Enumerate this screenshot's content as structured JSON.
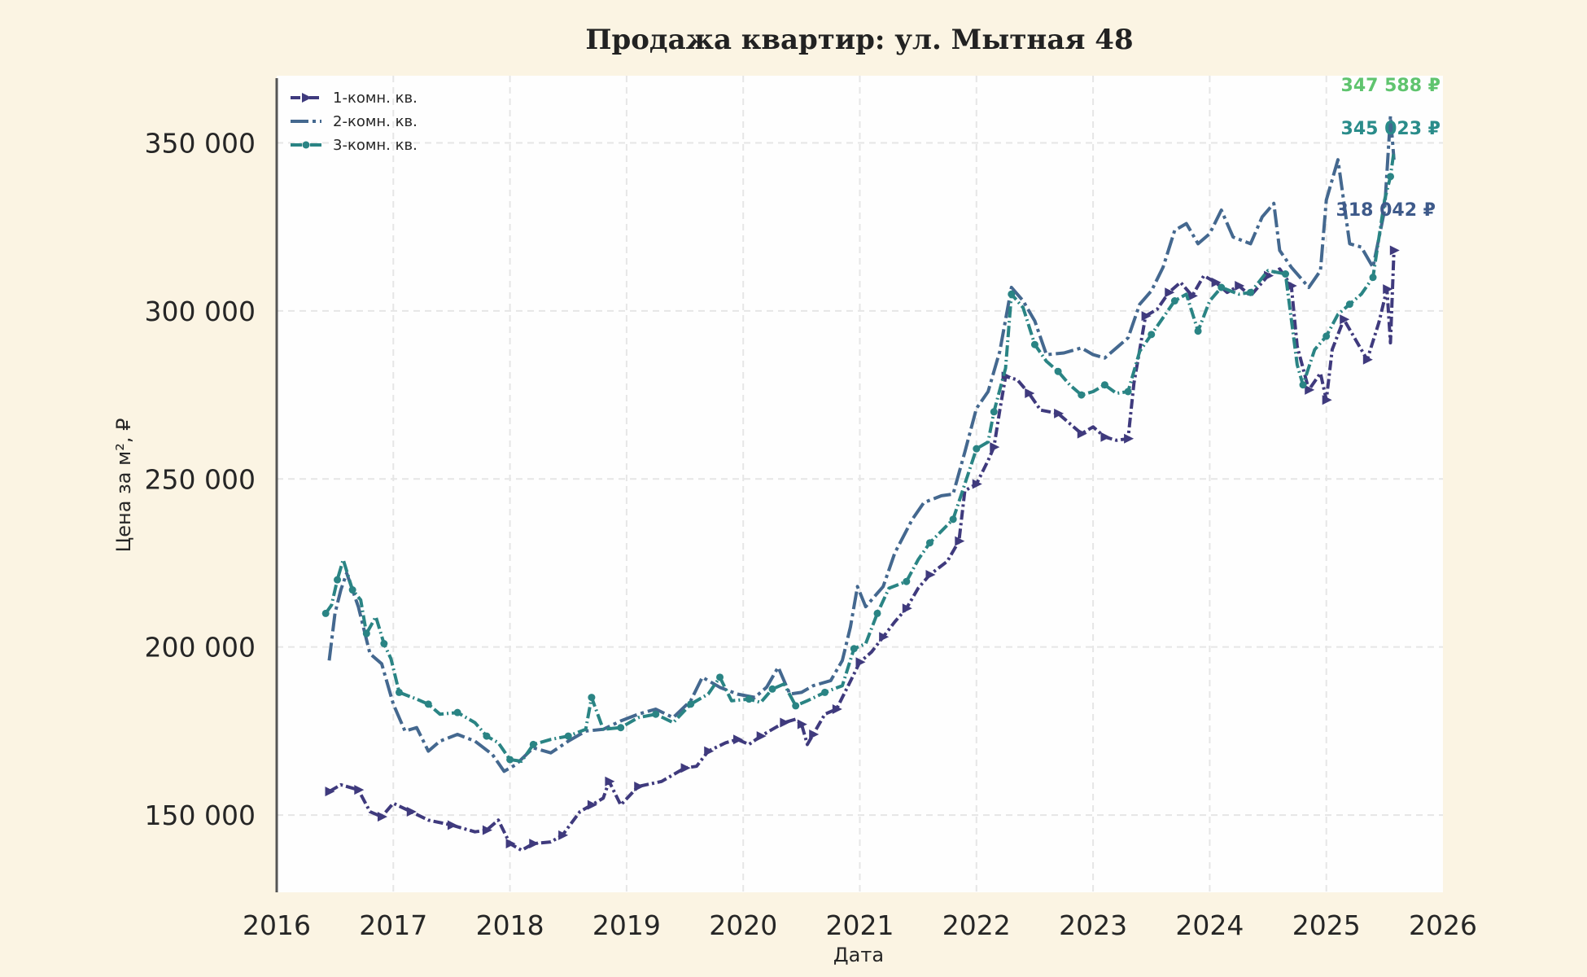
{
  "chart_data": {
    "type": "line",
    "title": "Продажа квартир: ул. Мытная 48",
    "xlabel": "Дата",
    "ylabel": "Цена за м², ₽",
    "xlim": [
      2016.0,
      2026.0
    ],
    "ylim": [
      127000,
      370000
    ],
    "x_ticks": [
      "2016",
      "2017",
      "2018",
      "2019",
      "2020",
      "2021",
      "2022",
      "2023",
      "2024",
      "2025",
      "2026"
    ],
    "y_ticks": [
      "150 000",
      "200 000",
      "250 000",
      "300 000",
      "350 000"
    ],
    "y_tick_values": [
      150000,
      200000,
      250000,
      300000,
      350000
    ],
    "grid": true,
    "legend_position": "top-left",
    "series": [
      {
        "name": "1-комн. кв.",
        "color": "#3f3a7d",
        "dash": "12 4 3 4",
        "marker": "triangle-right",
        "end_label": "318 042 ₽",
        "points": [
          [
            2016.45,
            157000
          ],
          [
            2016.55,
            159000
          ],
          [
            2016.7,
            157500
          ],
          [
            2016.8,
            151000
          ],
          [
            2016.9,
            149500
          ],
          [
            2017.0,
            153500
          ],
          [
            2017.15,
            151000
          ],
          [
            2017.3,
            148500
          ],
          [
            2017.5,
            147000
          ],
          [
            2017.7,
            145000
          ],
          [
            2017.8,
            145500
          ],
          [
            2017.9,
            148500
          ],
          [
            2018.0,
            141500
          ],
          [
            2018.1,
            139500
          ],
          [
            2018.2,
            141500
          ],
          [
            2018.35,
            142000
          ],
          [
            2018.45,
            144000
          ],
          [
            2018.6,
            151000
          ],
          [
            2018.7,
            153000
          ],
          [
            2018.8,
            155000
          ],
          [
            2018.85,
            160000
          ],
          [
            2018.95,
            153000
          ],
          [
            2019.1,
            158500
          ],
          [
            2019.3,
            160000
          ],
          [
            2019.5,
            164000
          ],
          [
            2019.6,
            164500
          ],
          [
            2019.7,
            169000
          ],
          [
            2019.85,
            171500
          ],
          [
            2019.95,
            172500
          ],
          [
            2020.05,
            171000
          ],
          [
            2020.15,
            173500
          ],
          [
            2020.25,
            175500
          ],
          [
            2020.35,
            177500
          ],
          [
            2020.45,
            178500
          ],
          [
            2020.5,
            177000
          ],
          [
            2020.55,
            171000
          ],
          [
            2020.6,
            174000
          ],
          [
            2020.7,
            180000
          ],
          [
            2020.8,
            181500
          ],
          [
            2020.9,
            188500
          ],
          [
            2021.0,
            195500
          ],
          [
            2021.1,
            198500
          ],
          [
            2021.2,
            203000
          ],
          [
            2021.3,
            207500
          ],
          [
            2021.4,
            211500
          ],
          [
            2021.5,
            217500
          ],
          [
            2021.6,
            221500
          ],
          [
            2021.75,
            225500
          ],
          [
            2021.85,
            231500
          ],
          [
            2021.9,
            246500
          ],
          [
            2022.0,
            248500
          ],
          [
            2022.1,
            255500
          ],
          [
            2022.15,
            259500
          ],
          [
            2022.2,
            270500
          ],
          [
            2022.25,
            280500
          ],
          [
            2022.35,
            279500
          ],
          [
            2022.45,
            275500
          ],
          [
            2022.55,
            270500
          ],
          [
            2022.7,
            269500
          ],
          [
            2022.8,
            266500
          ],
          [
            2022.9,
            263500
          ],
          [
            2023.0,
            265500
          ],
          [
            2023.1,
            262500
          ],
          [
            2023.2,
            261500
          ],
          [
            2023.3,
            262000
          ],
          [
            2023.35,
            278500
          ],
          [
            2023.45,
            298500
          ],
          [
            2023.55,
            300500
          ],
          [
            2023.65,
            305500
          ],
          [
            2023.75,
            308500
          ],
          [
            2023.85,
            304500
          ],
          [
            2023.95,
            310500
          ],
          [
            2024.05,
            308500
          ],
          [
            2024.15,
            305500
          ],
          [
            2024.25,
            307500
          ],
          [
            2024.35,
            304500
          ],
          [
            2024.5,
            310500
          ],
          [
            2024.6,
            312500
          ],
          [
            2024.7,
            307500
          ],
          [
            2024.75,
            289500
          ],
          [
            2024.85,
            276500
          ],
          [
            2024.95,
            281500
          ],
          [
            2025.0,
            273500
          ],
          [
            2025.05,
            288500
          ],
          [
            2025.15,
            297500
          ],
          [
            2025.25,
            291500
          ],
          [
            2025.35,
            285500
          ],
          [
            2025.45,
            296500
          ],
          [
            2025.52,
            306500
          ],
          [
            2025.55,
            290500
          ],
          [
            2025.58,
            318042
          ]
        ]
      },
      {
        "name": "2-комн. кв.",
        "color": "#44688f",
        "dash": "22 5 4 5",
        "marker": "none",
        "end_label": "345 023 ₽",
        "points": [
          [
            2016.45,
            196000
          ],
          [
            2016.5,
            210000
          ],
          [
            2016.55,
            217000
          ],
          [
            2016.6,
            222000
          ],
          [
            2016.7,
            212000
          ],
          [
            2016.8,
            198000
          ],
          [
            2016.9,
            195000
          ],
          [
            2017.0,
            183000
          ],
          [
            2017.1,
            175000
          ],
          [
            2017.2,
            176000
          ],
          [
            2017.3,
            169000
          ],
          [
            2017.4,
            172000
          ],
          [
            2017.55,
            174000
          ],
          [
            2017.7,
            172000
          ],
          [
            2017.85,
            168000
          ],
          [
            2017.95,
            163000
          ],
          [
            2018.05,
            165000
          ],
          [
            2018.2,
            170000
          ],
          [
            2018.35,
            168500
          ],
          [
            2018.5,
            172000
          ],
          [
            2018.65,
            175000
          ],
          [
            2018.8,
            175500
          ],
          [
            2018.95,
            178000
          ],
          [
            2019.1,
            180000
          ],
          [
            2019.25,
            181500
          ],
          [
            2019.4,
            179000
          ],
          [
            2019.55,
            184000
          ],
          [
            2019.65,
            191000
          ],
          [
            2019.8,
            188000
          ],
          [
            2019.95,
            186000
          ],
          [
            2020.1,
            185000
          ],
          [
            2020.2,
            188000
          ],
          [
            2020.3,
            194000
          ],
          [
            2020.4,
            186000
          ],
          [
            2020.5,
            186500
          ],
          [
            2020.6,
            188500
          ],
          [
            2020.75,
            190000
          ],
          [
            2020.85,
            196000
          ],
          [
            2020.92,
            206000
          ],
          [
            2020.98,
            218000
          ],
          [
            2021.05,
            212000
          ],
          [
            2021.2,
            218000
          ],
          [
            2021.3,
            228000
          ],
          [
            2021.45,
            238000
          ],
          [
            2021.55,
            243000
          ],
          [
            2021.7,
            245000
          ],
          [
            2021.8,
            245500
          ],
          [
            2021.9,
            258000
          ],
          [
            2022.0,
            271000
          ],
          [
            2022.1,
            276000
          ],
          [
            2022.2,
            288000
          ],
          [
            2022.3,
            307000
          ],
          [
            2022.4,
            303000
          ],
          [
            2022.5,
            297000
          ],
          [
            2022.6,
            287000
          ],
          [
            2022.75,
            287500
          ],
          [
            2022.9,
            289000
          ],
          [
            2023.0,
            287000
          ],
          [
            2023.1,
            286000
          ],
          [
            2023.2,
            289000
          ],
          [
            2023.3,
            292000
          ],
          [
            2023.4,
            302000
          ],
          [
            2023.5,
            306000
          ],
          [
            2023.6,
            313000
          ],
          [
            2023.7,
            324000
          ],
          [
            2023.8,
            326000
          ],
          [
            2023.9,
            320000
          ],
          [
            2024.0,
            323000
          ],
          [
            2024.1,
            330000
          ],
          [
            2024.2,
            322000
          ],
          [
            2024.35,
            320000
          ],
          [
            2024.45,
            328000
          ],
          [
            2024.55,
            332000
          ],
          [
            2024.6,
            318000
          ],
          [
            2024.7,
            313000
          ],
          [
            2024.85,
            307000
          ],
          [
            2024.95,
            312000
          ],
          [
            2025.0,
            333000
          ],
          [
            2025.1,
            345000
          ],
          [
            2025.2,
            320000
          ],
          [
            2025.3,
            319000
          ],
          [
            2025.4,
            313000
          ],
          [
            2025.5,
            330000
          ],
          [
            2025.55,
            358000
          ],
          [
            2025.58,
            345023
          ]
        ]
      },
      {
        "name": "3-комн. кв.",
        "color": "#2a8484",
        "dash": "14 4 2 4",
        "marker": "circle",
        "end_label": "347 588 ₽",
        "points": [
          [
            2016.42,
            210000
          ],
          [
            2016.47,
            212500
          ],
          [
            2016.52,
            220000
          ],
          [
            2016.57,
            226000
          ],
          [
            2016.65,
            217000
          ],
          [
            2016.72,
            214000
          ],
          [
            2016.77,
            204000
          ],
          [
            2016.85,
            209000
          ],
          [
            2016.92,
            201000
          ],
          [
            2016.98,
            196500
          ],
          [
            2017.05,
            186500
          ],
          [
            2017.2,
            184500
          ],
          [
            2017.3,
            183000
          ],
          [
            2017.4,
            180000
          ],
          [
            2017.55,
            180500
          ],
          [
            2017.7,
            177500
          ],
          [
            2017.8,
            173500
          ],
          [
            2017.9,
            171500
          ],
          [
            2018.0,
            166500
          ],
          [
            2018.1,
            166000
          ],
          [
            2018.2,
            171000
          ],
          [
            2018.35,
            172500
          ],
          [
            2018.5,
            173500
          ],
          [
            2018.65,
            175500
          ],
          [
            2018.7,
            185000
          ],
          [
            2018.8,
            175500
          ],
          [
            2018.95,
            176000
          ],
          [
            2019.1,
            179000
          ],
          [
            2019.25,
            180000
          ],
          [
            2019.4,
            177500
          ],
          [
            2019.55,
            183000
          ],
          [
            2019.7,
            186000
          ],
          [
            2019.8,
            191000
          ],
          [
            2019.9,
            184000
          ],
          [
            2020.05,
            184500
          ],
          [
            2020.15,
            183500
          ],
          [
            2020.25,
            187500
          ],
          [
            2020.35,
            189000
          ],
          [
            2020.45,
            182500
          ],
          [
            2020.55,
            184000
          ],
          [
            2020.7,
            186500
          ],
          [
            2020.85,
            188500
          ],
          [
            2020.95,
            199500
          ],
          [
            2021.05,
            201000
          ],
          [
            2021.15,
            210000
          ],
          [
            2021.25,
            217500
          ],
          [
            2021.4,
            219500
          ],
          [
            2021.5,
            226000
          ],
          [
            2021.6,
            231000
          ],
          [
            2021.7,
            234500
          ],
          [
            2021.8,
            238000
          ],
          [
            2021.9,
            248500
          ],
          [
            2022.0,
            259000
          ],
          [
            2022.1,
            261000
          ],
          [
            2022.15,
            270000
          ],
          [
            2022.25,
            283000
          ],
          [
            2022.3,
            305000
          ],
          [
            2022.4,
            301000
          ],
          [
            2022.5,
            290000
          ],
          [
            2022.6,
            285000
          ],
          [
            2022.7,
            282000
          ],
          [
            2022.8,
            278000
          ],
          [
            2022.9,
            275000
          ],
          [
            2023.0,
            276000
          ],
          [
            2023.1,
            278000
          ],
          [
            2023.2,
            275500
          ],
          [
            2023.3,
            276000
          ],
          [
            2023.4,
            288000
          ],
          [
            2023.5,
            293000
          ],
          [
            2023.6,
            298000
          ],
          [
            2023.7,
            303000
          ],
          [
            2023.8,
            305000
          ],
          [
            2023.9,
            294000
          ],
          [
            2024.0,
            303000
          ],
          [
            2024.1,
            307000
          ],
          [
            2024.25,
            305000
          ],
          [
            2024.35,
            305500
          ],
          [
            2024.5,
            312000
          ],
          [
            2024.65,
            311000
          ],
          [
            2024.75,
            284000
          ],
          [
            2024.8,
            278000
          ],
          [
            2024.9,
            288500
          ],
          [
            2025.0,
            292500
          ],
          [
            2025.1,
            299000
          ],
          [
            2025.2,
            302000
          ],
          [
            2025.3,
            305000
          ],
          [
            2025.4,
            310000
          ],
          [
            2025.5,
            333000
          ],
          [
            2025.55,
            340000
          ],
          [
            2025.58,
            347588
          ]
        ]
      }
    ]
  },
  "end_label_colors": [
    "#3e5a8a",
    "#2a8c8a",
    "#5fc46e"
  ]
}
